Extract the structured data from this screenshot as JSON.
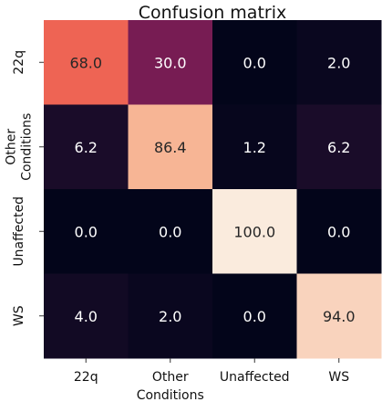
{
  "chart_data": {
    "type": "heatmap",
    "title": "Confusion matrix",
    "row_labels": [
      [
        "22q"
      ],
      [
        "Other",
        "Conditions"
      ],
      [
        "Unaffected"
      ],
      [
        "WS"
      ]
    ],
    "col_labels": [
      [
        "22q"
      ],
      [
        "Other",
        "Conditions"
      ],
      [
        "Unaffected"
      ],
      [
        "WS"
      ]
    ],
    "values": [
      [
        68.0,
        30.0,
        0.0,
        2.0
      ],
      [
        6.2,
        86.4,
        1.2,
        6.2
      ],
      [
        0.0,
        0.0,
        100.0,
        0.0
      ],
      [
        4.0,
        2.0,
        0.0,
        94.0
      ]
    ],
    "value_format": "fixed-1",
    "value_range": [
      0,
      100
    ],
    "colormap": [
      "#03051a",
      "#4c1d4b",
      "#a11a5b",
      "#e83f3f",
      "#f69c73",
      "#faebdd"
    ],
    "grid": false,
    "legend": "none"
  }
}
